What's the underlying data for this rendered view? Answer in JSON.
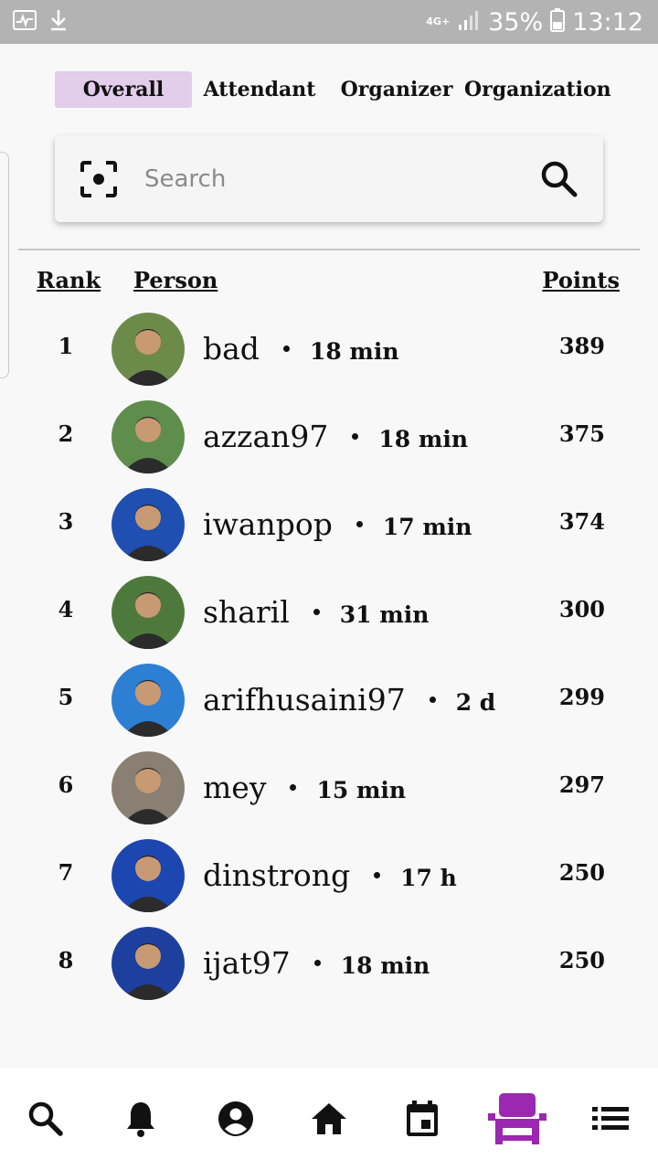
{
  "status_bar": {
    "network": "4G+",
    "battery_percent": "35%",
    "time": "13:12",
    "icons": [
      "activity-icon",
      "download-icon",
      "signal-icon",
      "battery-icon"
    ]
  },
  "tabs": [
    {
      "label": "Overall",
      "active": true
    },
    {
      "label": "Attendant",
      "active": false
    },
    {
      "label": "Organizer",
      "active": false
    },
    {
      "label": "Organization",
      "active": false
    }
  ],
  "search": {
    "placeholder": "Search",
    "value": "",
    "left_icon": "scan-icon",
    "right_icon": "search-icon"
  },
  "table": {
    "headers": {
      "rank": "Rank",
      "person": "Person",
      "points": "Points"
    },
    "rows": [
      {
        "rank": "1",
        "name": "bad",
        "time": "18 min",
        "points": "389",
        "avatar_bg": "#6c8a4a"
      },
      {
        "rank": "2",
        "name": "azzan97",
        "time": "18 min",
        "points": "375",
        "avatar_bg": "#5e8d4c"
      },
      {
        "rank": "3",
        "name": "iwanpop",
        "time": "17 min",
        "points": "374",
        "avatar_bg": "#1f4fb0"
      },
      {
        "rank": "4",
        "name": "sharil",
        "time": "31 min",
        "points": "300",
        "avatar_bg": "#4d7a3c"
      },
      {
        "rank": "5",
        "name": "arifhusaini97",
        "time": "2 d",
        "points": "299",
        "avatar_bg": "#2d7fd4"
      },
      {
        "rank": "6",
        "name": "mey",
        "time": "15 min",
        "points": "297",
        "avatar_bg": "#8a7f73"
      },
      {
        "rank": "7",
        "name": "dinstrong",
        "time": "17 h",
        "points": "250",
        "avatar_bg": "#1d47b0"
      },
      {
        "rank": "8",
        "name": "ijat97",
        "time": "18 min",
        "points": "250",
        "avatar_bg": "#1d3f9e"
      }
    ]
  },
  "bottom_nav": [
    {
      "name": "search-icon",
      "active": false
    },
    {
      "name": "bell-icon",
      "active": false
    },
    {
      "name": "account-icon",
      "active": false
    },
    {
      "name": "home-icon",
      "active": false
    },
    {
      "name": "calendar-icon",
      "active": false
    },
    {
      "name": "seat-icon",
      "active": true
    },
    {
      "name": "list-icon",
      "active": false
    }
  ],
  "colors": {
    "accent": "#9c27b0",
    "tab_active_bg": "#e2cdea",
    "status_bar": "#b3b3b3"
  }
}
